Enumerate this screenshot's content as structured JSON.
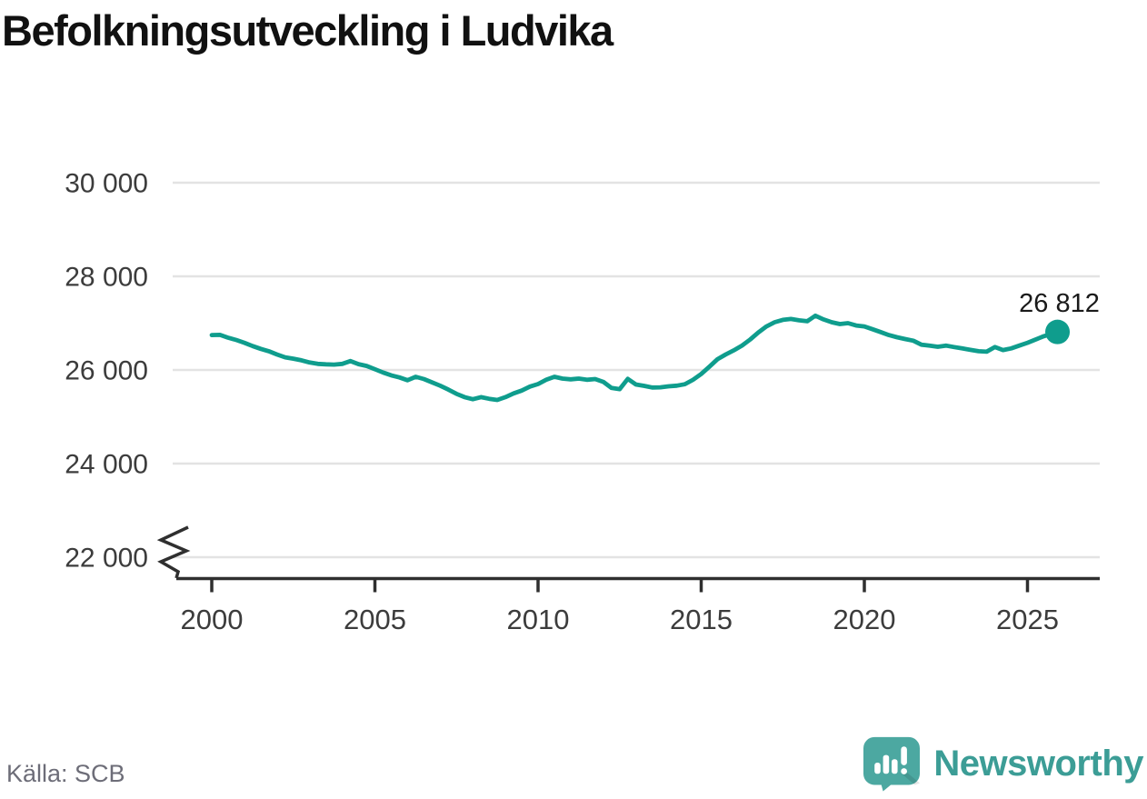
{
  "title": "Befolkningsutveckling i Ludvika",
  "source": {
    "text": "Källa: SCB"
  },
  "logo": {
    "text": "Newsworthy",
    "mark_color": "#4ca8a1",
    "text_color": "#3c9d96"
  },
  "colors": {
    "line": "#0f9d8d",
    "grid": "#e3e3e3",
    "axis": "#2f2f2f",
    "tick_label": "#3c3c3c",
    "title": "#111111",
    "end_label": "#1a1a1a",
    "source": "#6d6d78"
  },
  "chart_data": {
    "type": "line",
    "title": "Befolkningsutveckling i Ludvika",
    "series_name": "Befolkning i Ludvika",
    "xlabel": "",
    "ylabel": "",
    "grid": "horizontal",
    "axis_break_at_bottom": true,
    "ylim": [
      21550,
      30450
    ],
    "x_range_shown": [
      2000,
      2027.2
    ],
    "y_tick_values": [
      30000,
      28000,
      26000,
      24000,
      22000
    ],
    "y_tick_labels": [
      "30 000",
      "28 000",
      "26 000",
      "24 000",
      "22 000"
    ],
    "x_ticks": [
      2000,
      2005,
      2010,
      2015,
      2020,
      2025
    ],
    "x": [
      2000.0,
      2000.25,
      2000.5,
      2000.75,
      2001.0,
      2001.25,
      2001.5,
      2001.75,
      2002.0,
      2002.25,
      2002.5,
      2002.75,
      2003.0,
      2003.25,
      2003.5,
      2003.75,
      2004.0,
      2004.25,
      2004.5,
      2004.75,
      2005.0,
      2005.25,
      2005.5,
      2005.75,
      2006.0,
      2006.25,
      2006.5,
      2006.75,
      2007.0,
      2007.25,
      2007.5,
      2007.75,
      2008.0,
      2008.25,
      2008.5,
      2008.75,
      2009.0,
      2009.25,
      2009.5,
      2009.75,
      2010.0,
      2010.25,
      2010.5,
      2010.75,
      2011.0,
      2011.25,
      2011.5,
      2011.75,
      2012.0,
      2012.25,
      2012.5,
      2012.75,
      2013.0,
      2013.25,
      2013.5,
      2013.75,
      2014.0,
      2014.25,
      2014.5,
      2014.75,
      2015.0,
      2015.25,
      2015.5,
      2015.75,
      2016.0,
      2016.25,
      2016.5,
      2016.75,
      2017.0,
      2017.25,
      2017.5,
      2017.75,
      2018.0,
      2018.25,
      2018.5,
      2018.75,
      2019.0,
      2019.25,
      2019.5,
      2019.75,
      2020.0,
      2020.25,
      2020.5,
      2020.75,
      2021.0,
      2021.25,
      2021.5,
      2021.75,
      2022.0,
      2022.25,
      2022.5,
      2022.75,
      2023.0,
      2023.25,
      2023.5,
      2023.75,
      2024.0,
      2024.25,
      2024.5,
      2024.75,
      2025.0,
      2025.25,
      2025.5,
      2025.92
    ],
    "values": [
      26745,
      26750,
      26690,
      26640,
      26580,
      26510,
      26450,
      26400,
      26330,
      26270,
      26240,
      26205,
      26160,
      26130,
      26120,
      26115,
      26130,
      26190,
      26125,
      26085,
      26015,
      25945,
      25885,
      25840,
      25780,
      25855,
      25805,
      25735,
      25665,
      25580,
      25490,
      25420,
      25375,
      25420,
      25385,
      25360,
      25420,
      25500,
      25560,
      25645,
      25700,
      25790,
      25855,
      25815,
      25800,
      25815,
      25790,
      25805,
      25745,
      25615,
      25590,
      25810,
      25690,
      25660,
      25625,
      25630,
      25650,
      25665,
      25695,
      25790,
      25915,
      26070,
      26230,
      26330,
      26420,
      26520,
      26650,
      26800,
      26930,
      27020,
      27070,
      27090,
      27060,
      27040,
      27160,
      27080,
      27020,
      26980,
      27000,
      26950,
      26930,
      26870,
      26810,
      26745,
      26700,
      26660,
      26625,
      26540,
      26520,
      26495,
      26520,
      26490,
      26460,
      26430,
      26400,
      26390,
      26490,
      26425,
      26460,
      26520,
      26580,
      26650,
      26720,
      26812
    ],
    "last_point": {
      "x": 2025.92,
      "value": 26812,
      "label": "26 812"
    }
  }
}
